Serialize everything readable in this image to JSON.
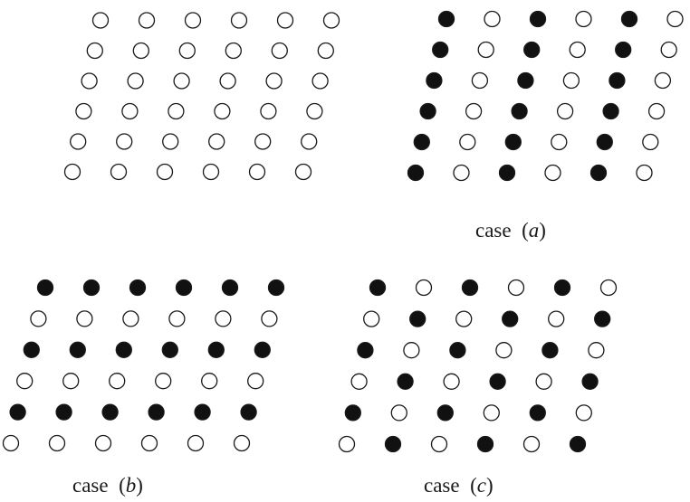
{
  "colors": {
    "filled": "#111111",
    "open": "#ffffff",
    "stroke": "#1a1a1a"
  },
  "captions": {
    "a": {
      "word": "case",
      "open": "(",
      "letter": "a",
      "close": ")"
    },
    "b": {
      "word": "case",
      "open": "(",
      "letter": "b",
      "close": ")"
    },
    "c": {
      "word": "case",
      "open": "(",
      "letter": "c",
      "close": ")"
    }
  },
  "lattices": [
    {
      "id": "reference",
      "rows": [
        [
          0,
          0,
          0,
          0,
          0,
          0
        ],
        [
          0,
          0,
          0,
          0,
          0,
          0
        ],
        [
          0,
          0,
          0,
          0,
          0,
          0
        ],
        [
          0,
          0,
          0,
          0,
          0,
          0
        ],
        [
          0,
          0,
          0,
          0,
          0,
          0
        ],
        [
          0,
          0,
          0,
          0,
          0,
          0
        ]
      ]
    },
    {
      "id": "case-a",
      "rows": [
        [
          1,
          0,
          1,
          0,
          1,
          0
        ],
        [
          1,
          0,
          1,
          0,
          1,
          0
        ],
        [
          1,
          0,
          1,
          0,
          1,
          0
        ],
        [
          1,
          0,
          1,
          0,
          1,
          0
        ],
        [
          1,
          0,
          1,
          0,
          1,
          0
        ],
        [
          1,
          0,
          1,
          0,
          1,
          0
        ]
      ]
    },
    {
      "id": "case-b",
      "rows": [
        [
          1,
          1,
          1,
          1,
          1,
          1
        ],
        [
          0,
          0,
          0,
          0,
          0,
          0
        ],
        [
          1,
          1,
          1,
          1,
          1,
          1
        ],
        [
          0,
          0,
          0,
          0,
          0,
          0
        ],
        [
          1,
          1,
          1,
          1,
          1,
          1
        ],
        [
          0,
          0,
          0,
          0,
          0,
          0
        ]
      ]
    },
    {
      "id": "case-c",
      "rows": [
        [
          1,
          0,
          1,
          0,
          1,
          0
        ],
        [
          0,
          1,
          0,
          1,
          0,
          1
        ],
        [
          1,
          0,
          1,
          0,
          1,
          0
        ],
        [
          0,
          1,
          0,
          1,
          0,
          1
        ],
        [
          1,
          0,
          1,
          0,
          1,
          0
        ],
        [
          0,
          1,
          0,
          1,
          0,
          1
        ]
      ]
    }
  ]
}
